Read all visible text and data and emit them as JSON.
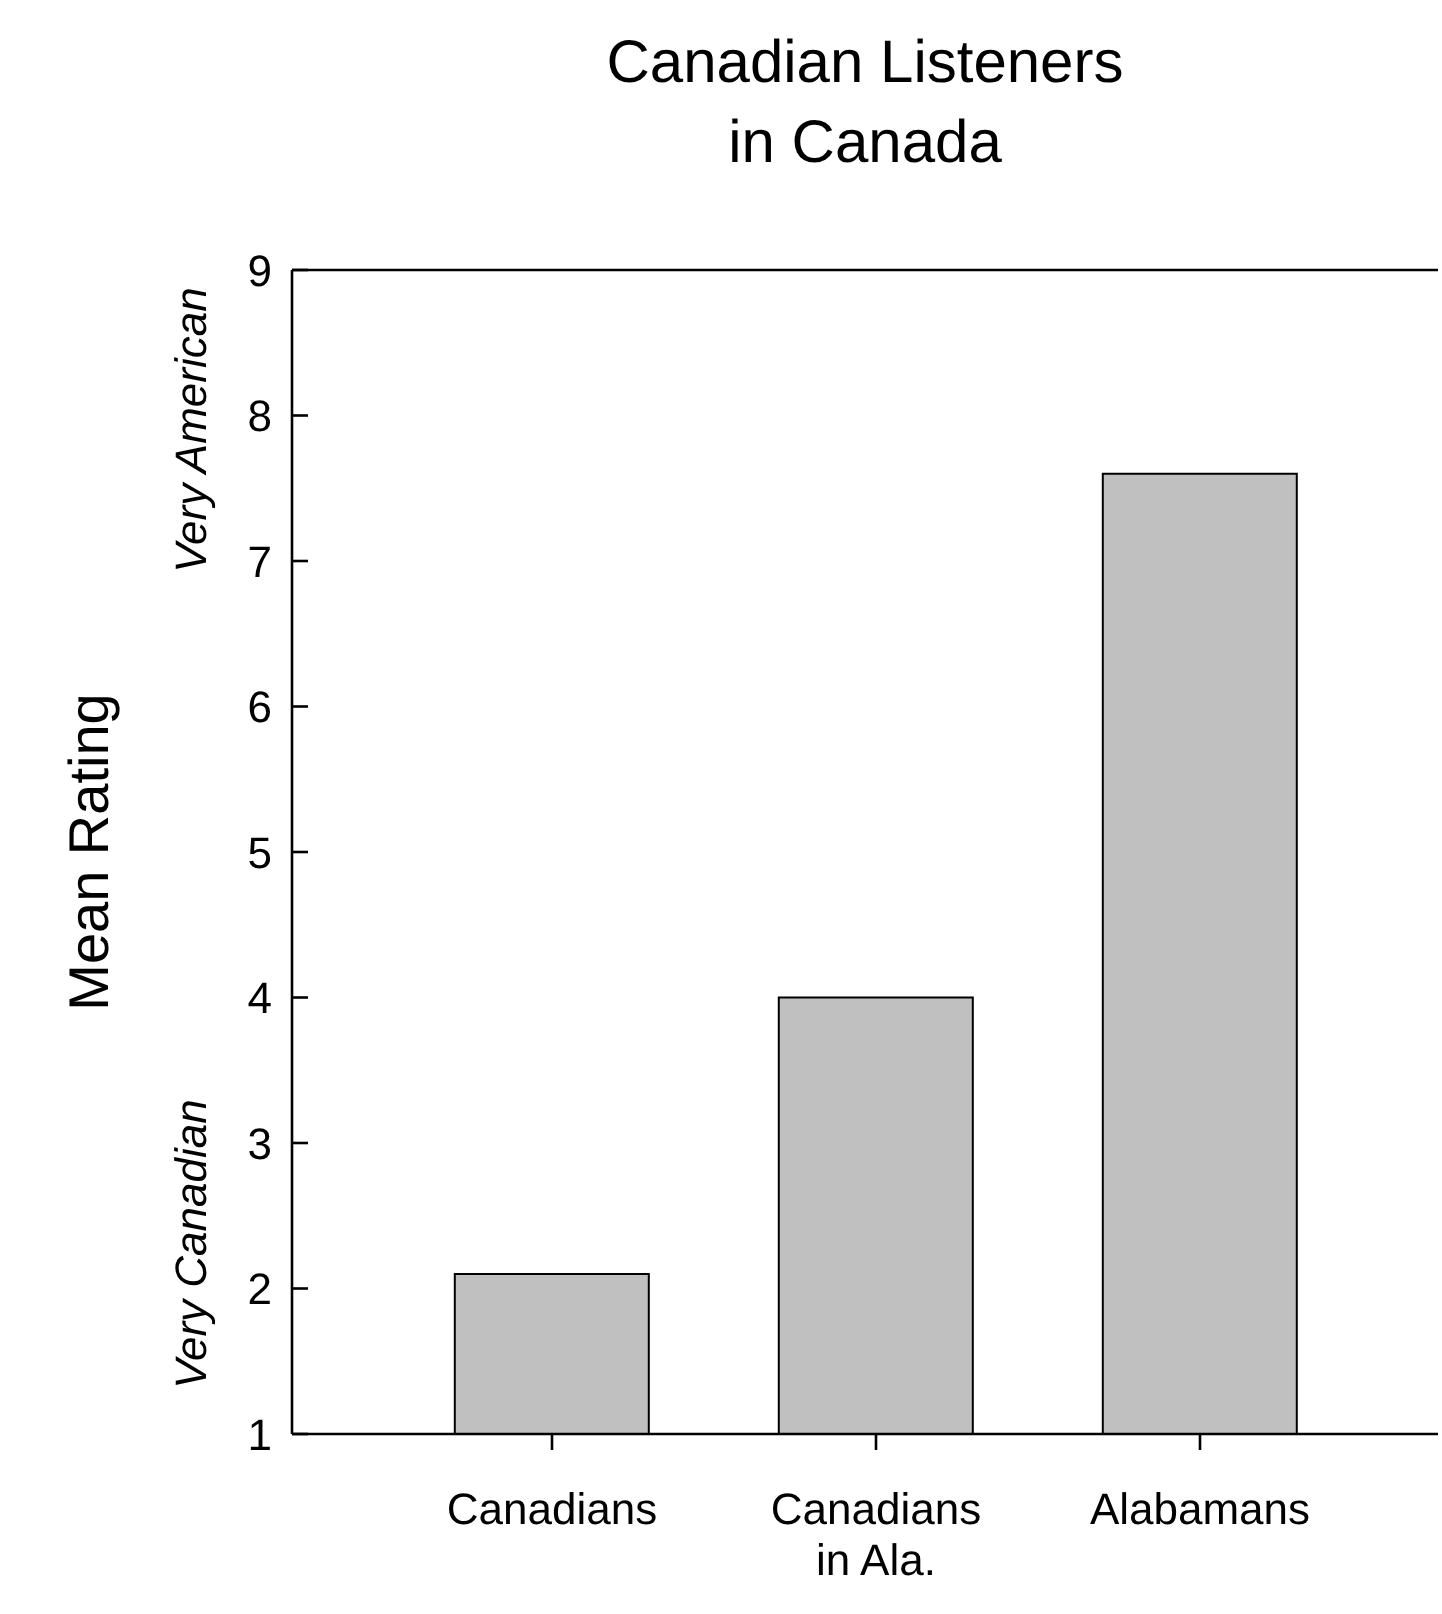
{
  "chart_data": {
    "type": "bar",
    "title": "Canadian Listeners\nin Canada",
    "ylabel": "Mean Rating",
    "categories": [
      "Canadians",
      "Canadians in Ala.",
      "Alabamans"
    ],
    "values": [
      2.1,
      4.0,
      7.6
    ],
    "color": "#c0c0c0",
    "ylim": [
      1,
      9
    ],
    "yticks": [
      1,
      2,
      3,
      4,
      5,
      6,
      7,
      8,
      9
    ],
    "annotations": [
      "Very American",
      "Very Canadian"
    ]
  }
}
